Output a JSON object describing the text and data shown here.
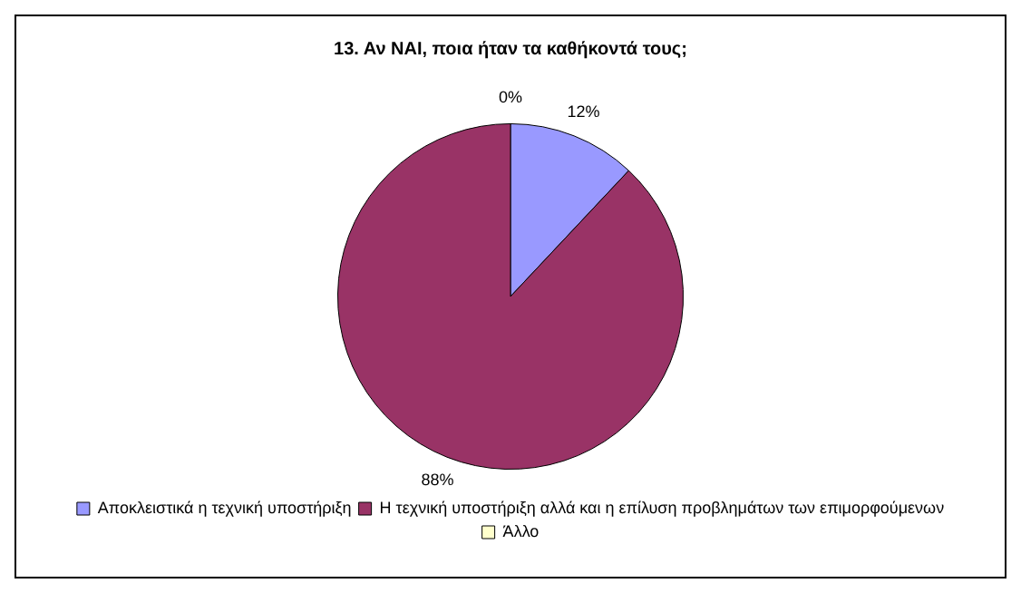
{
  "chart_data": {
    "type": "pie",
    "title": "13. Αν ΝΑΙ, ποια ήταν τα καθήκοντά τους;",
    "categories": [
      "Αποκλειστικά η τεχνική υποστήριξη",
      "Η τεχνική υποστήριξη αλλά και η επίλυση προβλημάτων των επιμορφούμενων",
      "Άλλο"
    ],
    "values": [
      12,
      88,
      0
    ],
    "value_labels": [
      "12%",
      "88%",
      "0%"
    ],
    "colors": [
      "#9999ff",
      "#993366",
      "#ffffcc"
    ],
    "legend": "bottom"
  }
}
